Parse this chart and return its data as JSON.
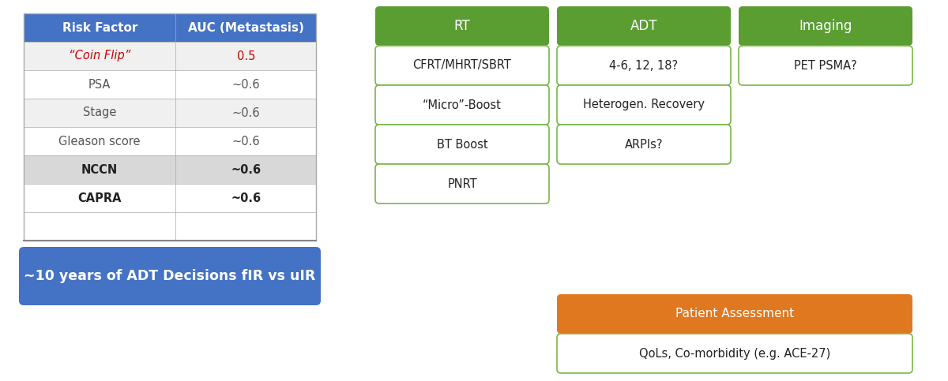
{
  "bg_color": "#ffffff",
  "table": {
    "header": [
      "Risk Factor",
      "AUC (Metastasis)"
    ],
    "header_bg": "#4472c4",
    "header_text_color": "#ffffff",
    "row_labels": [
      "“Coin Flip”",
      "PSA",
      "Stage",
      "Gleason score",
      "NCCN",
      "CAPRA"
    ],
    "row_values": [
      "0.5",
      "~0.6",
      "~0.6",
      "~0.6",
      "~0.6",
      "~0.6"
    ],
    "row_colors_label": [
      "#cc0000",
      "#555555",
      "#555555",
      "#555555",
      "#222222",
      "#222222"
    ],
    "row_colors_value": [
      "#cc0000",
      "#555555",
      "#555555",
      "#555555",
      "#222222",
      "#222222"
    ],
    "row_bg": [
      "#f0f0f0",
      "#ffffff",
      "#f0f0f0",
      "#ffffff",
      "#d8d8d8",
      "#ffffff"
    ],
    "row_bold": [
      false,
      false,
      false,
      false,
      true,
      true
    ],
    "row_italic": [
      true,
      false,
      false,
      false,
      false,
      false
    ]
  },
  "blue_box": {
    "text": "~10 years of ADT Decisions fIR vs uIR",
    "bg": "#4472c4",
    "text_color": "#ffffff",
    "fontsize": 12.5
  },
  "right_panel": {
    "green_color": "#5a9e32",
    "orange_color": "#e07820",
    "outline_color": "#7ab648",
    "headers": [
      "RT",
      "ADT",
      "Imaging"
    ],
    "col1_items": [
      "CFRT/MHRT/SBRT",
      "“Micro”-Boost",
      "BT Boost",
      "PNRT"
    ],
    "col2_items": [
      "4-6, 12, 18?",
      "Heterogen. Recovery",
      "ARPIs?"
    ],
    "col3_items": [
      "PET PSMA?"
    ],
    "bottom_orange": "Patient Assessment",
    "bottom_white": "QoLs, Co-morbidity (e.g. ACE-27)"
  }
}
